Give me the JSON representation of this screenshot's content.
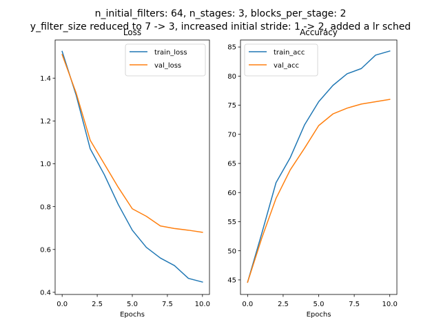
{
  "figure": {
    "suptitle_line1": "n_initial_filters: 64, n_stages: 3, blocks_per_stage: 2",
    "suptitle_line2": "y_filter_size reduced to 7 -> 3, increased initial stride: 1 -> 2, added a lr sched"
  },
  "colors": {
    "series_blue": "#1f77b4",
    "series_orange": "#ff7f0e"
  },
  "chart_data": [
    {
      "type": "line",
      "title": "Loss",
      "xlabel": "Epochs",
      "ylabel": "",
      "xlim": [
        -0.5,
        10.5
      ],
      "ylim": [
        0.39,
        1.578
      ],
      "xticks": [
        0,
        2.5,
        5,
        7.5,
        10
      ],
      "xtick_labels": [
        "0.0",
        "2.5",
        "5.0",
        "7.5",
        "10.0"
      ],
      "yticks": [
        0.4,
        0.6,
        0.8,
        1.0,
        1.2,
        1.4
      ],
      "ytick_labels": [
        "0.4",
        "0.6",
        "0.8",
        "1.0",
        "1.2",
        "1.4"
      ],
      "grid": false,
      "legend_position": "top-right",
      "x": [
        0,
        1,
        2,
        3,
        4,
        5,
        6,
        7,
        8,
        9,
        10
      ],
      "series": [
        {
          "name": "train_loss",
          "color": "#1f77b4",
          "values": [
            1.525,
            1.32,
            1.07,
            0.95,
            0.81,
            0.69,
            0.61,
            0.56,
            0.525,
            0.465,
            0.448
          ]
        },
        {
          "name": "val_loss",
          "color": "#ff7f0e",
          "values": [
            1.51,
            1.33,
            1.11,
            1.0,
            0.89,
            0.79,
            0.755,
            0.71,
            0.698,
            0.69,
            0.68
          ]
        }
      ]
    },
    {
      "type": "line",
      "title": "Accuracy",
      "xlabel": "Epochs",
      "ylabel": "",
      "xlim": [
        -0.5,
        10.5
      ],
      "ylim": [
        42.5,
        86.2
      ],
      "xticks": [
        0,
        2.5,
        5,
        7.5,
        10
      ],
      "xtick_labels": [
        "0.0",
        "2.5",
        "5.0",
        "7.5",
        "10.0"
      ],
      "yticks": [
        45,
        50,
        55,
        60,
        65,
        70,
        75,
        80,
        85
      ],
      "ytick_labels": [
        "45",
        "50",
        "55",
        "60",
        "65",
        "70",
        "75",
        "80",
        "85"
      ],
      "grid": false,
      "legend_position": "top-left",
      "x": [
        0,
        1,
        2,
        3,
        4,
        5,
        6,
        7,
        8,
        9,
        10
      ],
      "series": [
        {
          "name": "train_acc",
          "color": "#1f77b4",
          "values": [
            44.6,
            53.0,
            61.7,
            66.0,
            71.6,
            75.6,
            78.4,
            80.4,
            81.3,
            83.6,
            84.3
          ]
        },
        {
          "name": "val_acc",
          "color": "#ff7f0e",
          "values": [
            44.6,
            52.2,
            59.0,
            63.9,
            67.6,
            71.5,
            73.5,
            74.5,
            75.2,
            75.6,
            76.0
          ]
        }
      ]
    }
  ]
}
